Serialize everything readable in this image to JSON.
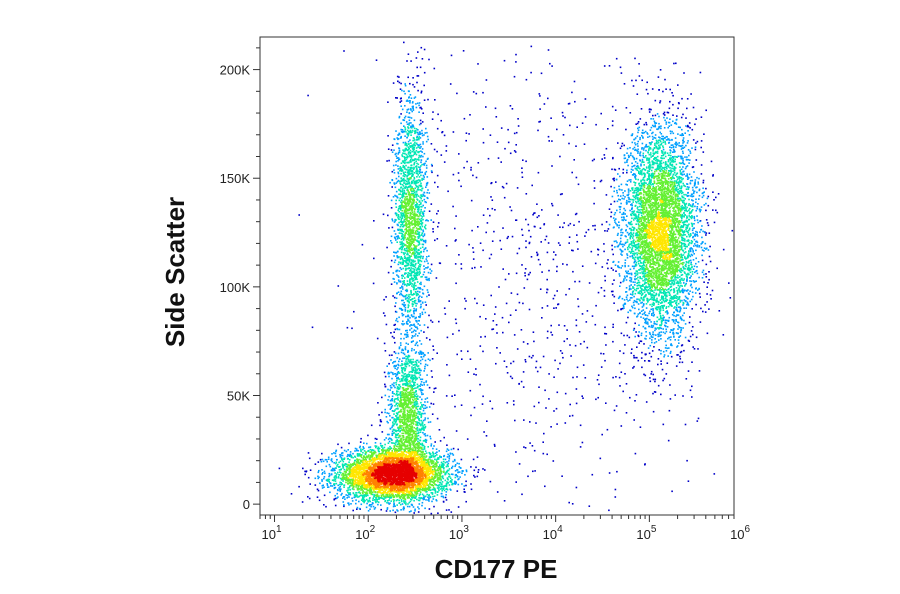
{
  "chart_data": {
    "type": "scatter",
    "title": "",
    "xlabel": "CD177 PE",
    "ylabel": "Side Scatter",
    "x_scale": "log",
    "xlim": [
      7,
      800000
    ],
    "ylim": [
      -5000,
      215000
    ],
    "x_ticks": [
      {
        "value": 10,
        "base": "10",
        "exp": "1"
      },
      {
        "value": 100,
        "base": "10",
        "exp": "2"
      },
      {
        "value": 1000,
        "base": "10",
        "exp": "3"
      },
      {
        "value": 10000,
        "base": "10",
        "exp": "4"
      },
      {
        "value": 100000,
        "base": "10",
        "exp": "5"
      },
      {
        "value": 1000000,
        "base": "10",
        "exp": "6"
      }
    ],
    "y_ticks": [
      {
        "value": 0,
        "label": "0"
      },
      {
        "value": 50000,
        "label": "50K"
      },
      {
        "value": 100000,
        "label": "100K"
      },
      {
        "value": 150000,
        "label": "150K"
      },
      {
        "value": 200000,
        "label": "200K"
      }
    ],
    "color_scale": [
      "#0000c8",
      "#00a0ff",
      "#00e6b4",
      "#64f032",
      "#ffe600",
      "#ff8200",
      "#e60000"
    ],
    "populations": [
      {
        "x_center": 180,
        "y_center": 14000,
        "x_spread_decades": 0.3,
        "y_spread": 6000,
        "weight": 0.34
      },
      {
        "x_center": 260,
        "y_center": 42000,
        "x_spread_decades": 0.1,
        "y_spread": 16000,
        "weight": 0.1
      },
      {
        "x_center": 280,
        "y_center": 132000,
        "x_spread_decades": 0.09,
        "y_spread": 28000,
        "weight": 0.14
      },
      {
        "x_center": 130000,
        "y_center": 125000,
        "x_spread_decades": 0.2,
        "y_spread": 24000,
        "weight": 0.36
      },
      {
        "x_center": 8000,
        "y_center": 105000,
        "x_spread_decades": 0.9,
        "y_spread": 60000,
        "weight": 0.06
      }
    ]
  }
}
